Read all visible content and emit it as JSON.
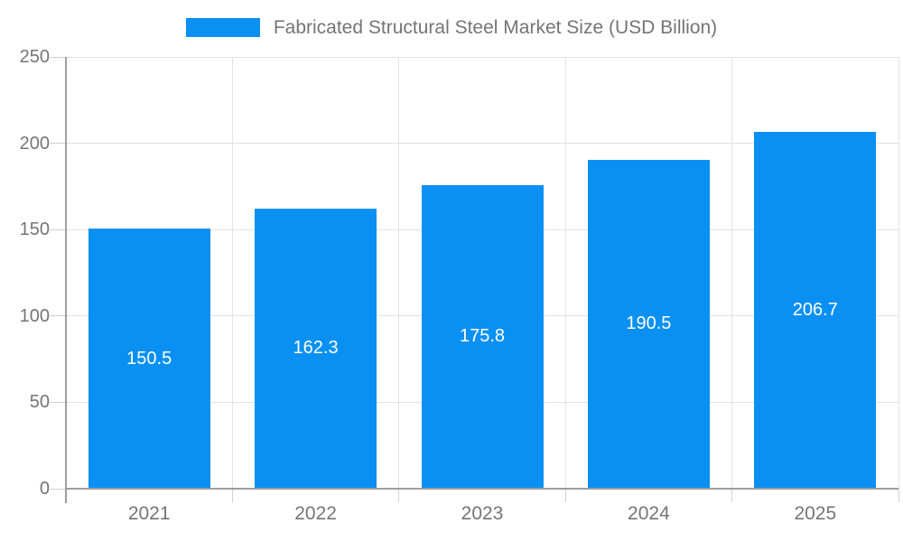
{
  "chart_data": {
    "type": "bar",
    "title": "Fabricated Structural Steel Market Size (USD Billion)",
    "categories": [
      "2021",
      "2022",
      "2023",
      "2024",
      "2025"
    ],
    "series": [
      {
        "name": "Fabricated Structural Steel Market Size (USD Billion)",
        "values": [
          150.5,
          162.3,
          175.8,
          190.5,
          206.7
        ]
      }
    ],
    "value_labels": [
      "150.5",
      "162.3",
      "175.8",
      "190.5",
      "206.7"
    ],
    "xlabel": "",
    "ylabel": "",
    "ylim": [
      0,
      250
    ],
    "yticks": [
      0,
      50,
      100,
      150,
      200,
      250
    ],
    "grid": true,
    "legend_position": "top",
    "value_label_position": "inside-center",
    "colors": {
      "bar": "#0990F2",
      "text": "#757575",
      "axis": "#9E9E9E",
      "grid": "#E2E2E2",
      "tick": "#D0D0D0",
      "value_label": "#FFFFFF"
    }
  }
}
